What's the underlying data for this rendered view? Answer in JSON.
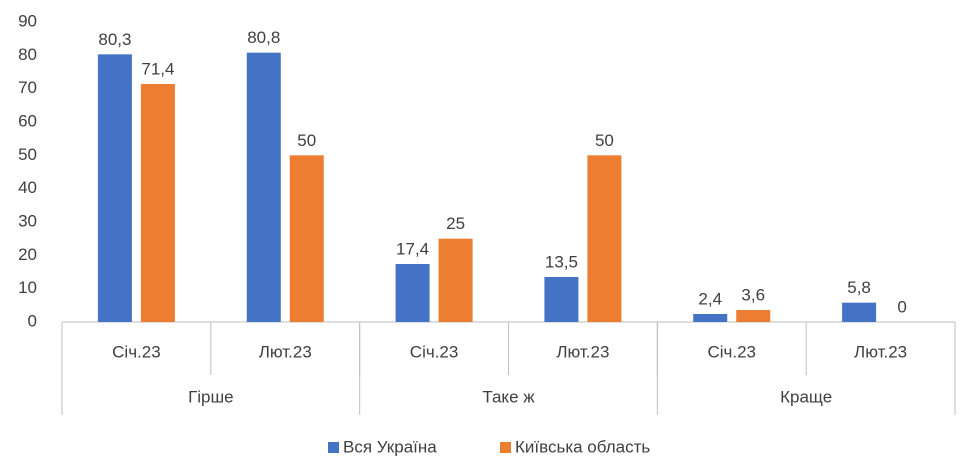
{
  "chart_data": {
    "type": "bar",
    "categories": [
      "Січ.23",
      "Лют.23",
      "Січ.23",
      "Лют.23",
      "Січ.23",
      "Лют.23"
    ],
    "groups": [
      "Гірше",
      "Таке ж",
      "Краще"
    ],
    "series": [
      {
        "name": "Вся Україна",
        "color": "#4472c4",
        "values": [
          80.3,
          80.8,
          17.4,
          13.5,
          2.4,
          5.8
        ],
        "value_labels": [
          "80,3",
          "80,8",
          "17,4",
          "13,5",
          "2,4",
          "5,8"
        ]
      },
      {
        "name": "Київська область",
        "color": "#ed7d31",
        "values": [
          71.4,
          50,
          25,
          50,
          3.6,
          0
        ],
        "value_labels": [
          "71,4",
          "50",
          "25",
          "50",
          "3,6",
          "0"
        ]
      }
    ],
    "ylim": [
      0,
      90
    ],
    "yticks": [
      0,
      10,
      20,
      30,
      40,
      50,
      60,
      70,
      80,
      90
    ],
    "grid": false,
    "legend": "bottom"
  }
}
